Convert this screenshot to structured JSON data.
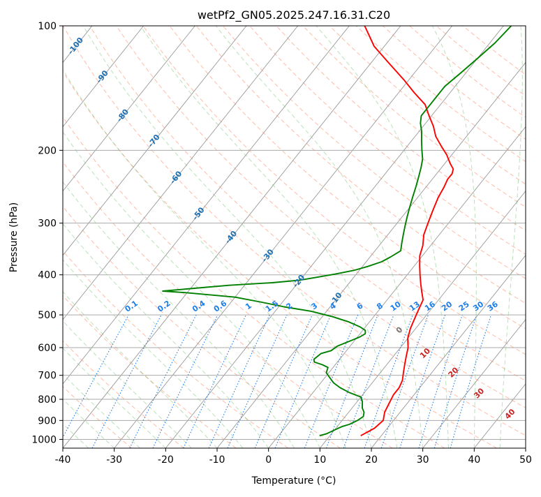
{
  "chart_data": {
    "type": "line",
    "title": "wetPf2_GN05.2025.247.16.31.C20",
    "xlabel": "Temperature (°C)",
    "ylabel": "Pressure (hPa)",
    "xlim": [
      -40,
      50
    ],
    "ylim": [
      1050,
      100
    ],
    "y_scale": "log",
    "skew": true,
    "grid": true,
    "x_ticks": [
      -40,
      -30,
      -20,
      -10,
      0,
      10,
      20,
      30,
      40,
      50
    ],
    "y_ticks": [
      100,
      200,
      300,
      400,
      500,
      600,
      700,
      800,
      900,
      1000
    ],
    "series": [
      {
        "color": "#ff0000",
        "points": [
          [
            16,
            980
          ],
          [
            17.5,
            940
          ],
          [
            18,
            900
          ],
          [
            17,
            860
          ],
          [
            16.5,
            820
          ],
          [
            16,
            780
          ],
          [
            16,
            750
          ],
          [
            15.5,
            720
          ],
          [
            14.5,
            690
          ],
          [
            13.5,
            660
          ],
          [
            12.5,
            630
          ],
          [
            11.5,
            600
          ],
          [
            10,
            570
          ],
          [
            9,
            540
          ],
          [
            8.5,
            520
          ],
          [
            8,
            500
          ],
          [
            7.5,
            480
          ],
          [
            7,
            460
          ],
          [
            5.5,
            440
          ],
          [
            4,
            420
          ],
          [
            2.5,
            400
          ],
          [
            1,
            380
          ],
          [
            -0.5,
            360
          ],
          [
            -1.5,
            340
          ],
          [
            -3,
            320
          ],
          [
            -4,
            300
          ],
          [
            -5,
            280
          ],
          [
            -6,
            260
          ],
          [
            -6.5,
            245
          ],
          [
            -7,
            235
          ],
          [
            -7,
            228
          ],
          [
            -7.5,
            222
          ],
          [
            -9,
            215
          ],
          [
            -11,
            205
          ],
          [
            -13.5,
            195
          ],
          [
            -16,
            185
          ],
          [
            -18,
            175
          ],
          [
            -20.5,
            165
          ],
          [
            -23,
            155
          ],
          [
            -27,
            145
          ],
          [
            -31,
            135
          ],
          [
            -37,
            122
          ],
          [
            -42,
            112
          ],
          [
            -47,
            100
          ]
        ]
      },
      {
        "color": "#008000",
        "points": [
          [
            8,
            980
          ],
          [
            9,
            970
          ],
          [
            10,
            950
          ],
          [
            11,
            930
          ],
          [
            12,
            920
          ],
          [
            13,
            900
          ],
          [
            13.5,
            880
          ],
          [
            13,
            860
          ],
          [
            12,
            840
          ],
          [
            11,
            810
          ],
          [
            10,
            790
          ],
          [
            8.5,
            780
          ],
          [
            7,
            770
          ],
          [
            4.5,
            750
          ],
          [
            2.5,
            730
          ],
          [
            1,
            710
          ],
          [
            -0.5,
            690
          ],
          [
            -1,
            670
          ],
          [
            -2.5,
            660
          ],
          [
            -4.5,
            650
          ],
          [
            -5,
            640
          ],
          [
            -4.5,
            620
          ],
          [
            -3,
            610
          ],
          [
            -2.5,
            595
          ],
          [
            -1.5,
            585
          ],
          [
            -0.5,
            575
          ],
          [
            0.5,
            565
          ],
          [
            1,
            555
          ],
          [
            0.5,
            545
          ],
          [
            -1,
            535
          ],
          [
            -4,
            520
          ],
          [
            -8,
            505
          ],
          [
            -13,
            490
          ],
          [
            -19,
            478
          ],
          [
            -24,
            466
          ],
          [
            -30,
            453
          ],
          [
            -40,
            442
          ],
          [
            -45,
            438
          ],
          [
            -40,
            432
          ],
          [
            -33,
            424
          ],
          [
            -25,
            418
          ],
          [
            -20,
            412
          ],
          [
            -17,
            405
          ],
          [
            -14,
            398
          ],
          [
            -11,
            390
          ],
          [
            -9,
            382
          ],
          [
            -7,
            372
          ],
          [
            -6,
            362
          ],
          [
            -5,
            350
          ],
          [
            -6,
            335
          ],
          [
            -7,
            320
          ],
          [
            -8,
            305
          ],
          [
            -9,
            290
          ],
          [
            -10,
            275
          ],
          [
            -11,
            260
          ],
          [
            -12,
            245
          ],
          [
            -13,
            232
          ],
          [
            -14,
            220
          ],
          [
            -15,
            210
          ],
          [
            -16.5,
            200
          ],
          [
            -18,
            190
          ],
          [
            -19.5,
            180
          ],
          [
            -21,
            172
          ],
          [
            -22,
            165
          ],
          [
            -22,
            158
          ],
          [
            -22,
            150
          ],
          [
            -22,
            140
          ],
          [
            -21,
            130
          ],
          [
            -20,
            120
          ],
          [
            -19,
            110
          ],
          [
            -18.5,
            100
          ]
        ]
      }
    ],
    "isotherm_labels": [
      "-100",
      "-90",
      "-80",
      "-70",
      "-60",
      "-50",
      "-40",
      "-30",
      "-20",
      "-10"
    ],
    "mixing_ratio_labels": [
      "0.1",
      "0.2",
      "0.4",
      "0.6",
      "1",
      "1.5",
      "2",
      "3",
      "4",
      "6",
      "8",
      "10",
      "13",
      "16",
      "20",
      "25",
      "30",
      "36"
    ],
    "moist_adiabat_labels": [
      "0",
      "10",
      "20",
      "30",
      "40"
    ]
  }
}
